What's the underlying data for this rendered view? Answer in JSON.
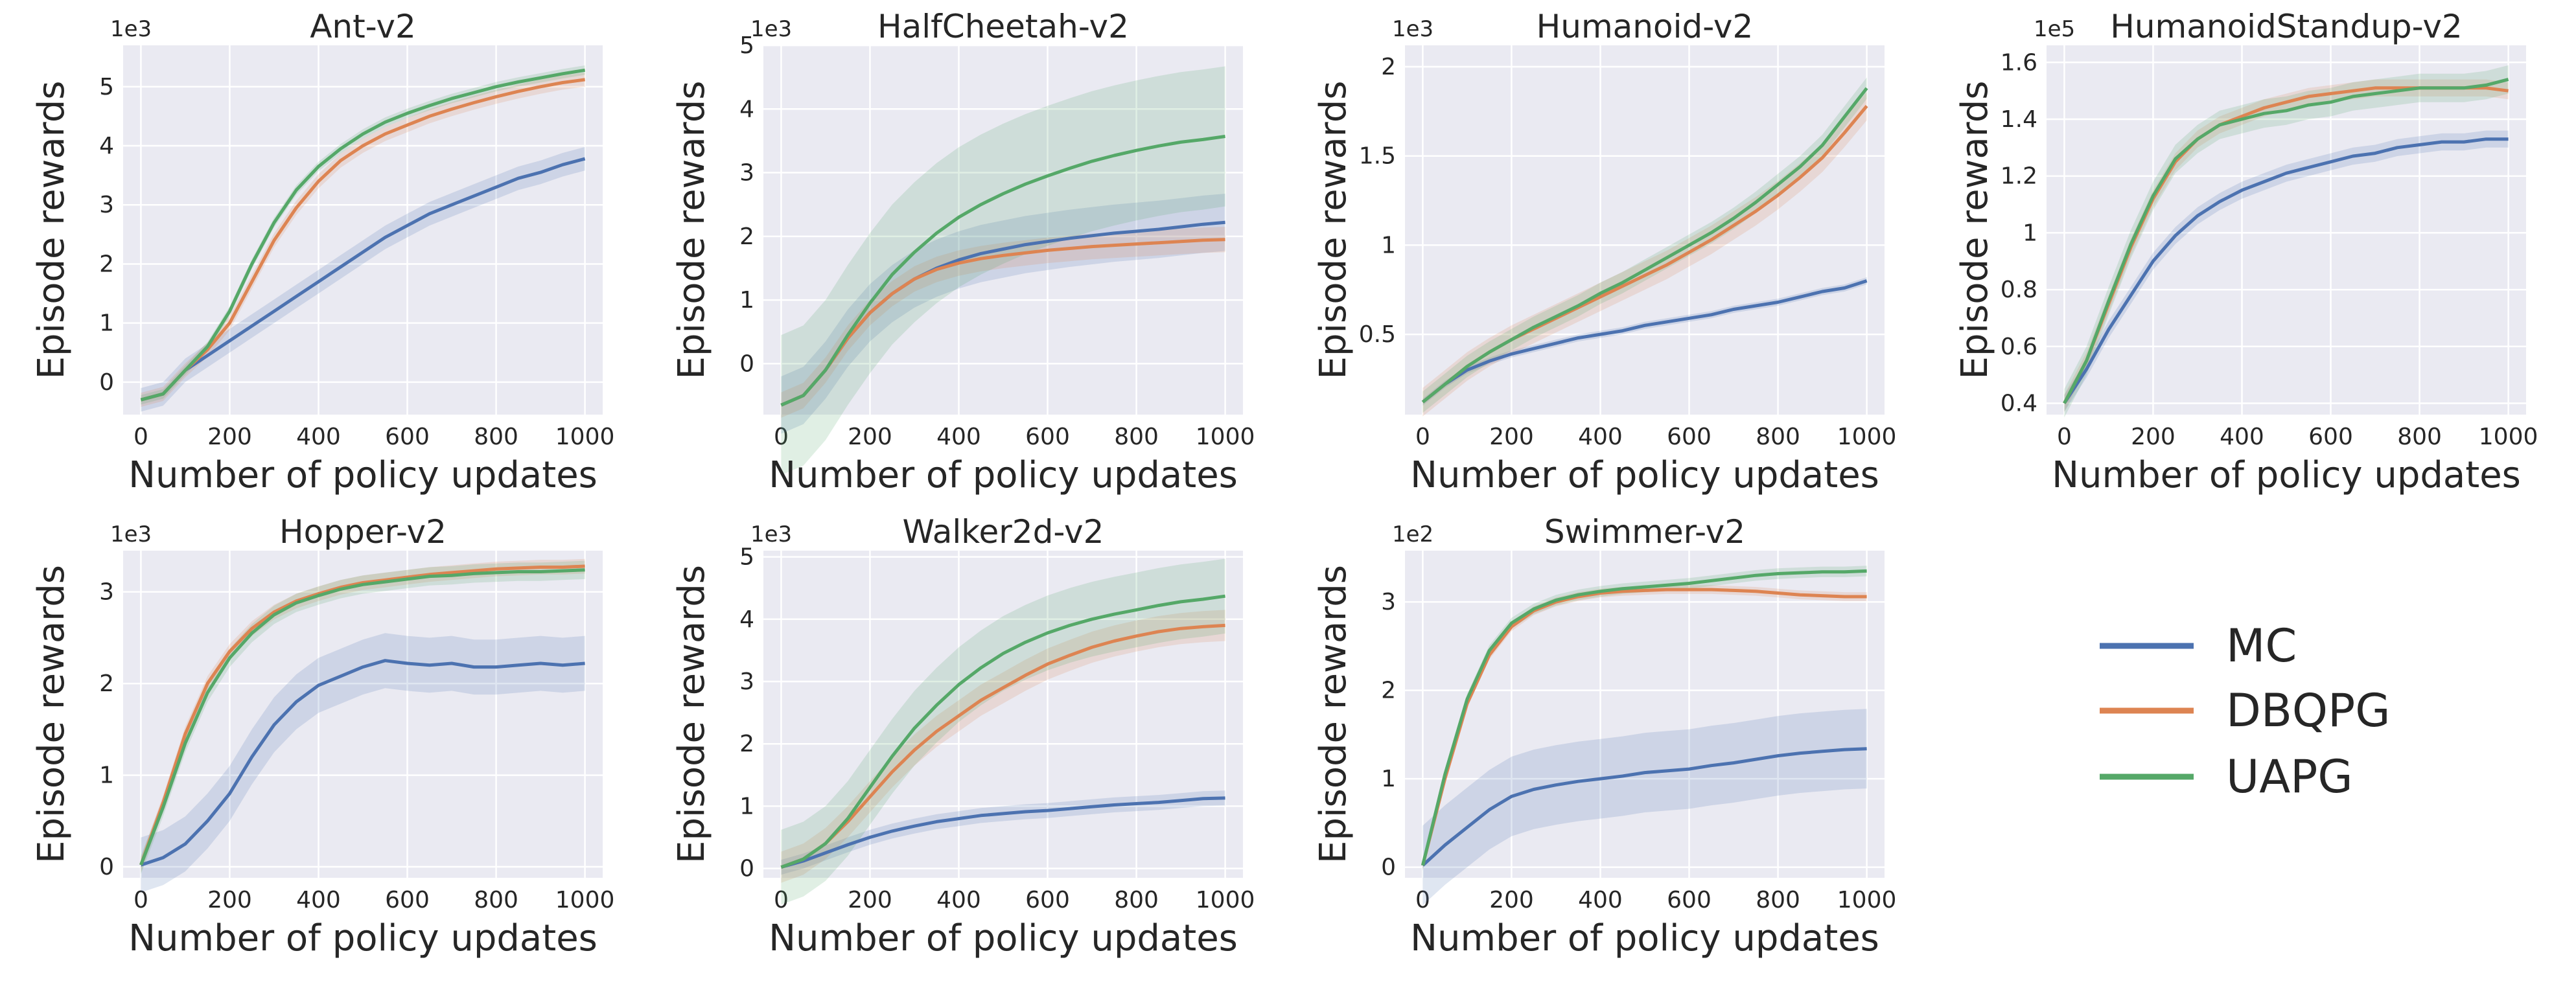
{
  "legend": {
    "placement": "right, bottom row",
    "items": [
      {
        "label": "MC",
        "color": "#4c72b0"
      },
      {
        "label": "DBQPG",
        "color": "#dd8452"
      },
      {
        "label": "UAPG",
        "color": "#55a868"
      }
    ]
  },
  "style": {
    "plot_background": "#eaeaf2",
    "grid": "#ffffff",
    "text": "#262626"
  },
  "chart_data": [
    {
      "type": "line",
      "title": "Ant-v2",
      "xlabel": "Number of policy updates",
      "ylabel": "Episode rewards",
      "exponent": "1e3",
      "grid": true,
      "xlim": [
        -40,
        1040
      ],
      "ylim": [
        -0.55,
        5.7
      ],
      "xticks": [
        0,
        200,
        400,
        600,
        800,
        1000
      ],
      "yticks": [
        0,
        1,
        2,
        3,
        4,
        5
      ],
      "x": [
        0,
        50,
        100,
        150,
        200,
        250,
        300,
        350,
        400,
        450,
        500,
        550,
        600,
        650,
        700,
        750,
        800,
        850,
        900,
        950,
        1000
      ],
      "series": [
        {
          "name": "MC",
          "color": "#4c72b0",
          "values": [
            -0.3,
            -0.2,
            0.2,
            0.45,
            0.7,
            0.95,
            1.2,
            1.45,
            1.7,
            1.95,
            2.2,
            2.45,
            2.65,
            2.85,
            3.0,
            3.15,
            3.3,
            3.45,
            3.55,
            3.68,
            3.78
          ],
          "band": 0.2
        },
        {
          "name": "DBQPG",
          "color": "#dd8452",
          "values": [
            -0.3,
            -0.2,
            0.2,
            0.55,
            1.0,
            1.7,
            2.4,
            2.95,
            3.4,
            3.75,
            4.0,
            4.2,
            4.35,
            4.5,
            4.62,
            4.73,
            4.83,
            4.92,
            5.0,
            5.07,
            5.12
          ],
          "band": 0.12
        },
        {
          "name": "UAPG",
          "color": "#55a868",
          "values": [
            -0.3,
            -0.2,
            0.2,
            0.6,
            1.2,
            2.0,
            2.7,
            3.25,
            3.65,
            3.95,
            4.2,
            4.4,
            4.55,
            4.68,
            4.8,
            4.9,
            5.0,
            5.08,
            5.15,
            5.22,
            5.28
          ],
          "band": 0.08
        }
      ]
    },
    {
      "type": "line",
      "title": "HalfCheetah-v2",
      "xlabel": "Number of policy updates",
      "ylabel": "Episode rewards",
      "exponent": "1e3",
      "grid": true,
      "xlim": [
        -40,
        1040
      ],
      "ylim": [
        -0.8,
        5.0
      ],
      "xticks": [
        0,
        200,
        400,
        600,
        800,
        1000
      ],
      "yticks": [
        0,
        1,
        2,
        3,
        4,
        5
      ],
      "x": [
        0,
        50,
        100,
        150,
        200,
        250,
        300,
        350,
        400,
        450,
        500,
        550,
        600,
        650,
        700,
        750,
        800,
        850,
        900,
        950,
        1000
      ],
      "series": [
        {
          "name": "MC",
          "color": "#4c72b0",
          "values": [
            -0.65,
            -0.5,
            -0.1,
            0.4,
            0.8,
            1.1,
            1.33,
            1.5,
            1.63,
            1.73,
            1.8,
            1.87,
            1.92,
            1.97,
            2.01,
            2.05,
            2.08,
            2.11,
            2.15,
            2.19,
            2.22
          ],
          "band": 0.45
        },
        {
          "name": "DBQPG",
          "color": "#dd8452",
          "values": [
            -0.65,
            -0.5,
            -0.1,
            0.4,
            0.8,
            1.1,
            1.33,
            1.48,
            1.58,
            1.65,
            1.7,
            1.74,
            1.78,
            1.81,
            1.84,
            1.86,
            1.88,
            1.9,
            1.92,
            1.94,
            1.95
          ],
          "band": 0.2
        },
        {
          "name": "UAPG",
          "color": "#55a868",
          "values": [
            -0.65,
            -0.5,
            -0.1,
            0.45,
            0.95,
            1.4,
            1.75,
            2.05,
            2.3,
            2.5,
            2.67,
            2.82,
            2.95,
            3.07,
            3.18,
            3.27,
            3.35,
            3.42,
            3.48,
            3.52,
            3.57
          ],
          "band": 1.1
        }
      ]
    },
    {
      "type": "line",
      "title": "Humanoid-v2",
      "xlabel": "Number of policy updates",
      "ylabel": "Episode rewards",
      "exponent": "1e3",
      "grid": true,
      "xlim": [
        -40,
        1040
      ],
      "ylim": [
        0.05,
        2.12
      ],
      "xticks": [
        0,
        200,
        400,
        600,
        800,
        1000
      ],
      "yticks": [
        0.5,
        1.0,
        1.5,
        2.0
      ],
      "x": [
        0,
        50,
        100,
        150,
        200,
        250,
        300,
        350,
        400,
        450,
        500,
        550,
        600,
        650,
        700,
        750,
        800,
        850,
        900,
        950,
        1000
      ],
      "series": [
        {
          "name": "MC",
          "color": "#4c72b0",
          "values": [
            0.12,
            0.22,
            0.3,
            0.35,
            0.39,
            0.42,
            0.45,
            0.48,
            0.5,
            0.52,
            0.55,
            0.57,
            0.59,
            0.61,
            0.64,
            0.66,
            0.68,
            0.71,
            0.74,
            0.76,
            0.8
          ],
          "band": 0.02
        },
        {
          "name": "DBQPG",
          "color": "#dd8452",
          "values": [
            0.12,
            0.22,
            0.32,
            0.4,
            0.47,
            0.53,
            0.59,
            0.65,
            0.71,
            0.77,
            0.83,
            0.89,
            0.96,
            1.03,
            1.11,
            1.19,
            1.28,
            1.38,
            1.49,
            1.63,
            1.78
          ],
          "band": 0.08
        },
        {
          "name": "UAPG",
          "color": "#55a868",
          "values": [
            0.12,
            0.22,
            0.32,
            0.4,
            0.47,
            0.54,
            0.6,
            0.66,
            0.73,
            0.79,
            0.86,
            0.93,
            1.0,
            1.07,
            1.15,
            1.24,
            1.34,
            1.44,
            1.56,
            1.72,
            1.88
          ],
          "band": 0.06
        }
      ]
    },
    {
      "type": "line",
      "title": "HumanoidStandup-v2",
      "xlabel": "Number of policy updates",
      "ylabel": "Episode rewards",
      "exponent": "1e5",
      "grid": true,
      "xlim": [
        -40,
        1040
      ],
      "ylim": [
        0.36,
        1.66
      ],
      "xticks": [
        0,
        200,
        400,
        600,
        800,
        1000
      ],
      "yticks": [
        0.4,
        0.6,
        0.8,
        1.0,
        1.2,
        1.4,
        1.6
      ],
      "x": [
        0,
        50,
        100,
        150,
        200,
        250,
        300,
        350,
        400,
        450,
        500,
        550,
        600,
        650,
        700,
        750,
        800,
        850,
        900,
        950,
        1000
      ],
      "series": [
        {
          "name": "MC",
          "color": "#4c72b0",
          "values": [
            0.4,
            0.52,
            0.66,
            0.78,
            0.9,
            0.99,
            1.06,
            1.11,
            1.15,
            1.18,
            1.21,
            1.23,
            1.25,
            1.27,
            1.28,
            1.3,
            1.31,
            1.32,
            1.32,
            1.33,
            1.33
          ],
          "band": 0.03
        },
        {
          "name": "DBQPG",
          "color": "#dd8452",
          "values": [
            0.4,
            0.55,
            0.75,
            0.95,
            1.12,
            1.25,
            1.33,
            1.38,
            1.41,
            1.44,
            1.46,
            1.48,
            1.49,
            1.5,
            1.51,
            1.51,
            1.51,
            1.51,
            1.51,
            1.51,
            1.5
          ],
          "band": 0.03
        },
        {
          "name": "UAPG",
          "color": "#55a868",
          "values": [
            0.4,
            0.55,
            0.76,
            0.96,
            1.13,
            1.26,
            1.33,
            1.38,
            1.4,
            1.42,
            1.43,
            1.45,
            1.46,
            1.48,
            1.49,
            1.5,
            1.51,
            1.51,
            1.51,
            1.52,
            1.54
          ],
          "band": 0.05
        }
      ]
    },
    {
      "type": "line",
      "title": "Hopper-v2",
      "xlabel": "Number of policy updates",
      "ylabel": "Episode rewards",
      "exponent": "1e3",
      "grid": true,
      "xlim": [
        -40,
        1040
      ],
      "ylim": [
        -0.12,
        3.45
      ],
      "xticks": [
        0,
        200,
        400,
        600,
        800,
        1000
      ],
      "yticks": [
        0,
        1,
        2,
        3
      ],
      "x": [
        0,
        50,
        100,
        150,
        200,
        250,
        300,
        350,
        400,
        450,
        500,
        550,
        600,
        650,
        700,
        750,
        800,
        850,
        900,
        950,
        1000
      ],
      "series": [
        {
          "name": "MC",
          "color": "#4c72b0",
          "values": [
            0.02,
            0.1,
            0.25,
            0.5,
            0.8,
            1.2,
            1.55,
            1.8,
            1.98,
            2.08,
            2.18,
            2.25,
            2.22,
            2.2,
            2.22,
            2.18,
            2.18,
            2.2,
            2.22,
            2.2,
            2.22
          ],
          "band": 0.3
        },
        {
          "name": "DBQPG",
          "color": "#dd8452",
          "values": [
            0.02,
            0.7,
            1.45,
            2.0,
            2.35,
            2.6,
            2.78,
            2.9,
            2.98,
            3.05,
            3.1,
            3.13,
            3.16,
            3.19,
            3.21,
            3.23,
            3.25,
            3.26,
            3.27,
            3.27,
            3.28
          ],
          "band": 0.08
        },
        {
          "name": "UAPG",
          "color": "#55a868",
          "values": [
            0.02,
            0.65,
            1.35,
            1.9,
            2.28,
            2.55,
            2.75,
            2.88,
            2.96,
            3.03,
            3.08,
            3.11,
            3.14,
            3.17,
            3.18,
            3.2,
            3.21,
            3.22,
            3.22,
            3.23,
            3.24
          ],
          "band": 0.1
        }
      ]
    },
    {
      "type": "line",
      "title": "Walker2d-v2",
      "xlabel": "Number of policy updates",
      "ylabel": "Episode rewards",
      "exponent": "1e3",
      "grid": true,
      "xlim": [
        -40,
        1040
      ],
      "ylim": [
        -0.15,
        5.1
      ],
      "xticks": [
        0,
        200,
        400,
        600,
        800,
        1000
      ],
      "yticks": [
        0,
        1,
        2,
        3,
        4,
        5
      ],
      "x": [
        0,
        50,
        100,
        150,
        200,
        250,
        300,
        350,
        400,
        450,
        500,
        550,
        600,
        650,
        700,
        750,
        800,
        850,
        900,
        950,
        1000
      ],
      "series": [
        {
          "name": "MC",
          "color": "#4c72b0",
          "values": [
            0.02,
            0.12,
            0.25,
            0.38,
            0.5,
            0.6,
            0.68,
            0.75,
            0.8,
            0.85,
            0.88,
            0.91,
            0.93,
            0.96,
            0.99,
            1.02,
            1.04,
            1.06,
            1.09,
            1.12,
            1.13
          ],
          "band": 0.12
        },
        {
          "name": "DBQPG",
          "color": "#dd8452",
          "values": [
            0.02,
            0.15,
            0.4,
            0.75,
            1.15,
            1.55,
            1.9,
            2.2,
            2.45,
            2.7,
            2.9,
            3.1,
            3.28,
            3.42,
            3.55,
            3.65,
            3.73,
            3.8,
            3.85,
            3.88,
            3.9
          ],
          "band": 0.25
        },
        {
          "name": "UAPG",
          "color": "#55a868",
          "values": [
            0.02,
            0.15,
            0.4,
            0.8,
            1.3,
            1.8,
            2.25,
            2.62,
            2.95,
            3.22,
            3.45,
            3.63,
            3.78,
            3.9,
            4.0,
            4.08,
            4.15,
            4.22,
            4.28,
            4.32,
            4.37
          ],
          "band": 0.6
        }
      ]
    },
    {
      "type": "line",
      "title": "Swimmer-v2",
      "xlabel": "Number of policy updates",
      "ylabel": "Episode rewards",
      "exponent": "1e2",
      "grid": true,
      "xlim": [
        -40,
        1040
      ],
      "ylim": [
        -0.12,
        3.58
      ],
      "xticks": [
        0,
        200,
        400,
        600,
        800,
        1000
      ],
      "yticks": [
        0,
        1,
        2,
        3
      ],
      "x": [
        0,
        50,
        100,
        150,
        200,
        250,
        300,
        350,
        400,
        450,
        500,
        550,
        600,
        650,
        700,
        750,
        800,
        850,
        900,
        950,
        1000
      ],
      "series": [
        {
          "name": "MC",
          "color": "#4c72b0",
          "values": [
            0.02,
            0.25,
            0.45,
            0.65,
            0.8,
            0.88,
            0.93,
            0.97,
            1.0,
            1.03,
            1.07,
            1.09,
            1.11,
            1.15,
            1.18,
            1.22,
            1.26,
            1.29,
            1.31,
            1.33,
            1.34
          ],
          "band": 0.45
        },
        {
          "name": "DBQPG",
          "color": "#dd8452",
          "values": [
            0.02,
            1.0,
            1.85,
            2.4,
            2.72,
            2.9,
            3.0,
            3.06,
            3.1,
            3.12,
            3.13,
            3.14,
            3.14,
            3.14,
            3.13,
            3.12,
            3.1,
            3.08,
            3.07,
            3.06,
            3.06
          ],
          "band": 0.05
        },
        {
          "name": "UAPG",
          "color": "#55a868",
          "values": [
            0.02,
            1.05,
            1.9,
            2.45,
            2.76,
            2.92,
            3.02,
            3.08,
            3.12,
            3.15,
            3.17,
            3.19,
            3.21,
            3.24,
            3.27,
            3.3,
            3.32,
            3.33,
            3.34,
            3.34,
            3.35
          ],
          "band": 0.06
        }
      ]
    }
  ]
}
